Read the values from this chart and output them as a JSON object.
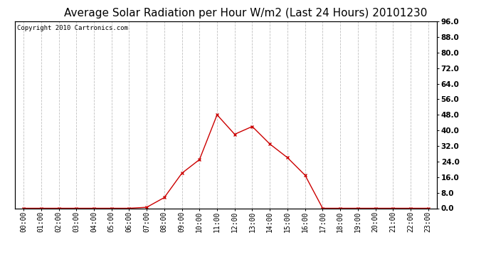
{
  "title": "Average Solar Radiation per Hour W/m2 (Last 24 Hours) 20101230",
  "copyright": "Copyright 2010 Cartronics.com",
  "hours": [
    "00:00",
    "01:00",
    "02:00",
    "03:00",
    "04:00",
    "05:00",
    "06:00",
    "07:00",
    "08:00",
    "09:00",
    "10:00",
    "11:00",
    "12:00",
    "13:00",
    "14:00",
    "15:00",
    "16:00",
    "17:00",
    "18:00",
    "19:00",
    "20:00",
    "21:00",
    "22:00",
    "23:00"
  ],
  "values": [
    0,
    0,
    0,
    0,
    0,
    0,
    0,
    0.5,
    5.5,
    18,
    25,
    48,
    38,
    42,
    33,
    26,
    17,
    0,
    0,
    0,
    0,
    0,
    0,
    0
  ],
  "line_color": "#cc0000",
  "marker": "x",
  "marker_color": "#cc0000",
  "bg_color": "#ffffff",
  "plot_bg_color": "#ffffff",
  "grid_color": "#c0c0c0",
  "grid_style": "--",
  "ylim": [
    0,
    96
  ],
  "yticks": [
    0.0,
    8.0,
    16.0,
    24.0,
    32.0,
    40.0,
    48.0,
    56.0,
    64.0,
    72.0,
    80.0,
    88.0,
    96.0
  ],
  "title_fontsize": 11,
  "tick_fontsize": 7,
  "copyright_fontsize": 6.5
}
